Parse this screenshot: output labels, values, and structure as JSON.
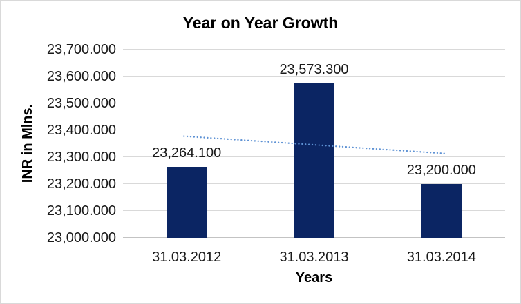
{
  "window": {
    "background": "#FFFFFF",
    "border_color": "#D9D9D9"
  },
  "chart_data": {
    "type": "bar",
    "title": "Year on Year Growth",
    "xlabel": "Years",
    "ylabel": "INR in Mlns.",
    "categories": [
      "31.03.2012",
      "31.03.2013",
      "31.03.2014"
    ],
    "values": [
      23264.1,
      23573.3,
      23200.0
    ],
    "data_labels": [
      "23,264.100",
      "23,573.300",
      "23,200.000"
    ],
    "ylim": [
      23000,
      23700
    ],
    "ytick_step": 100,
    "ytick_labels": [
      "23,000.000",
      "23,100.000",
      "23,200.000",
      "23,300.000",
      "23,400.000",
      "23,500.000",
      "23,600.000",
      "23,700.000"
    ],
    "grid": true,
    "legend": "none",
    "trendline": {
      "type": "linear",
      "style": "dotted",
      "start_value": 23377.9,
      "end_value": 23313.8,
      "color": "#5E92D4"
    },
    "colors": {
      "bar": "#0B2563",
      "gridline": "#D9D9D9",
      "axis_line": "#C3C3C3",
      "text": "#1A1A1A"
    }
  }
}
